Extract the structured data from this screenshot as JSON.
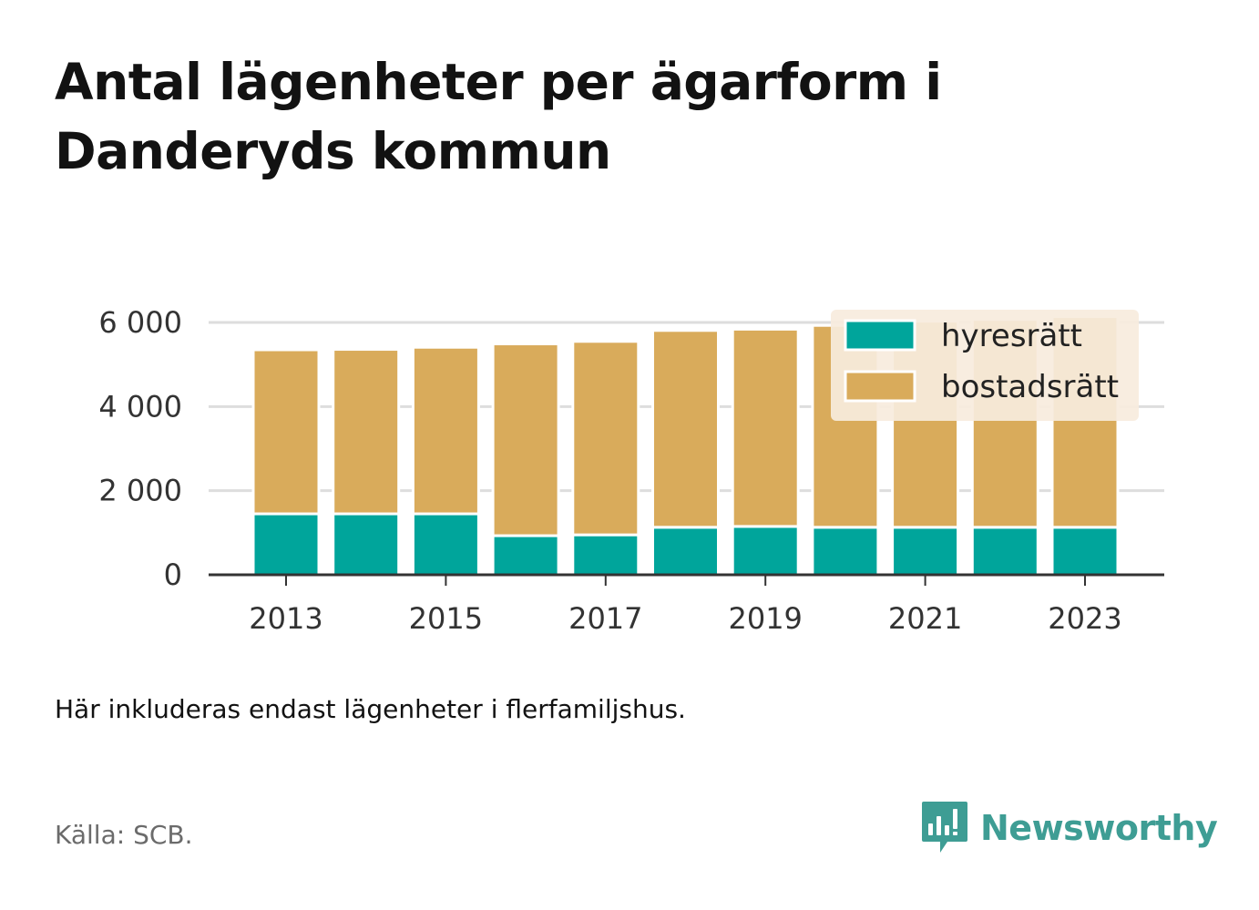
{
  "title": "Antal lägenheter per ägarform i Danderyds kommun",
  "note": "Här inkluderas endast lägenheter i flerfamiljshus.",
  "source": "Källa: SCB.",
  "brand": {
    "name": "Newsworthy",
    "icon": "newsworthy-logo-icon",
    "color": "#3e9d94"
  },
  "colors": {
    "hyresratt": "#00a59b",
    "bostadsratt": "#d9ab5b",
    "legend_bg": "#f7ecdd",
    "grid": "#dddddd",
    "axis": "#333333"
  },
  "chart_data": {
    "type": "bar",
    "stacked": true,
    "categories": [
      "2013",
      "2014",
      "2015",
      "2016",
      "2017",
      "2018",
      "2019",
      "2020",
      "2021",
      "2022",
      "2023"
    ],
    "x_tick_labels": [
      "2013",
      "2015",
      "2017",
      "2019",
      "2021",
      "2023"
    ],
    "y_ticks": [
      0,
      2000,
      4000,
      6000
    ],
    "y_tick_labels": [
      "0",
      "2 000",
      "4 000",
      "6 000"
    ],
    "ylim": [
      0,
      6000
    ],
    "grid": true,
    "legend_position": "top-right",
    "series": [
      {
        "name": "hyresrätt",
        "color": "#00a59b",
        "values": [
          1450,
          1450,
          1450,
          930,
          950,
          1130,
          1150,
          1130,
          1130,
          1130,
          1130
        ]
      },
      {
        "name": "bostadsrätt",
        "color": "#d9ab5b",
        "values": [
          3900,
          3910,
          3960,
          4560,
          4600,
          4680,
          4690,
          4800,
          4900,
          4940,
          5010
        ]
      }
    ]
  }
}
